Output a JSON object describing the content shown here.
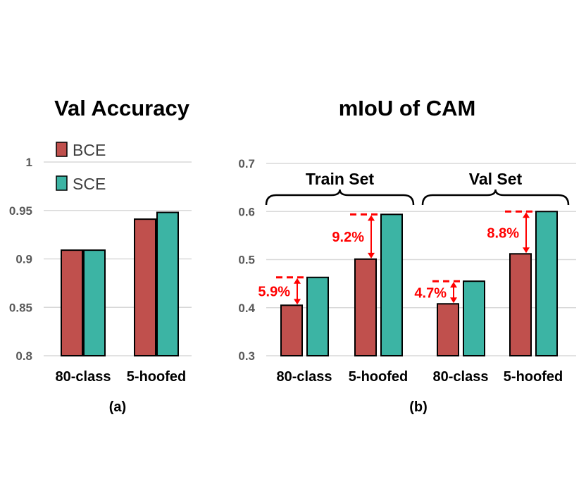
{
  "colors": {
    "bce": "#c0504d",
    "sce": "#3cb4a4",
    "grid": "#d9d9d9",
    "annotation": "#ff0000"
  },
  "legend": {
    "items": [
      {
        "label": "BCE",
        "color": "#c0504d"
      },
      {
        "label": "SCE",
        "color": "#3cb4a4"
      }
    ]
  },
  "chart_data": [
    {
      "type": "bar",
      "title": "Val Accuracy",
      "subtitle": "(a)",
      "categories": [
        "80-class",
        "5-hoofed"
      ],
      "series": [
        {
          "name": "BCE",
          "values": [
            0.909,
            0.941
          ]
        },
        {
          "name": "SCE",
          "values": [
            0.909,
            0.948
          ]
        }
      ],
      "ylim": [
        0.8,
        1.0
      ],
      "yticks": [
        "0.8",
        "0.85",
        "0.9",
        "0.95",
        "1"
      ],
      "grid": true,
      "legend": "top-left"
    },
    {
      "type": "bar",
      "title": "mIoU of CAM",
      "subtitle": "(b)",
      "categories": [
        "80-class",
        "5-hoofed",
        "80-class",
        "5-hoofed"
      ],
      "groups": [
        {
          "label": "Train Set",
          "categories": [
            0,
            1
          ]
        },
        {
          "label": "Val Set",
          "categories": [
            2,
            3
          ]
        }
      ],
      "series": [
        {
          "name": "BCE",
          "values": [
            0.405,
            0.501,
            0.408,
            0.512
          ]
        },
        {
          "name": "SCE",
          "values": [
            0.463,
            0.594,
            0.455,
            0.6
          ]
        }
      ],
      "annotations": [
        "5.9%",
        "9.2%",
        "4.7%",
        "8.8%"
      ],
      "ylim": [
        0.3,
        0.7
      ],
      "yticks": [
        "0.3",
        "0.4",
        "0.5",
        "0.6",
        "0.7"
      ],
      "grid": true
    }
  ]
}
